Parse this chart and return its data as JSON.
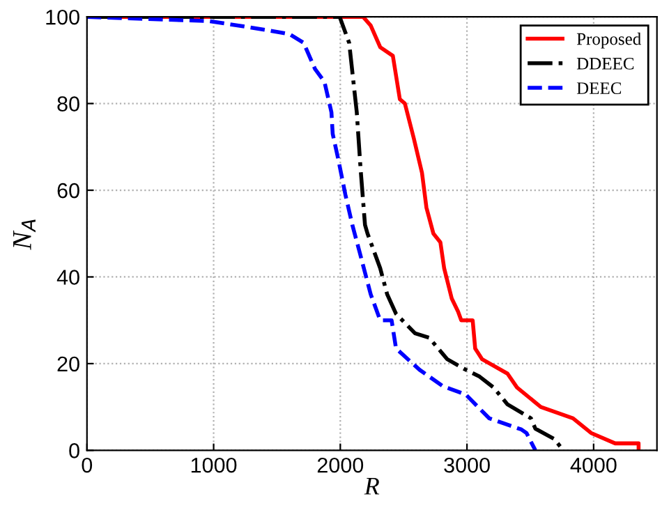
{
  "chart_data": {
    "type": "line",
    "xlabel": "R",
    "ylabel": "N$_{A}$",
    "xlim": [
      0,
      4500
    ],
    "ylim": [
      0,
      100
    ],
    "xticks": [
      0,
      1000,
      2000,
      3000,
      4000
    ],
    "yticks": [
      0,
      20,
      40,
      60,
      80,
      100
    ],
    "grid": true,
    "legend": "top right",
    "series": [
      {
        "name": "Proposed",
        "color": "#ff0000",
        "line_style": "solid",
        "x": [
          0,
          2180,
          2240,
          2315,
          2415,
          2470,
          2510,
          2580,
          2645,
          2680,
          2735,
          2790,
          2820,
          2880,
          2930,
          2955,
          3045,
          3065,
          3120,
          3320,
          3395,
          3583,
          3837,
          3980,
          4170,
          4355,
          4355
        ],
        "values": [
          100,
          100,
          98,
          93,
          91,
          81,
          80,
          72,
          64,
          56,
          50,
          48,
          42,
          35,
          32,
          30,
          30,
          23.5,
          21,
          17.7,
          14.5,
          10,
          7.4,
          4,
          1.6,
          1.6,
          0
        ]
      },
      {
        "name": "DDEEC",
        "color": "#000000",
        "line_style": "dashdot",
        "x": [
          0,
          1995,
          2070,
          2130,
          2160,
          2195,
          2215,
          2315,
          2370,
          2440,
          2590,
          2700,
          2845,
          2990,
          3100,
          3210,
          3320,
          3505,
          3540,
          3690,
          3760
        ],
        "values": [
          100,
          100,
          94,
          78,
          65,
          52,
          50,
          42,
          36,
          31.5,
          27,
          26,
          21,
          18.6,
          17,
          14.5,
          10.6,
          7.4,
          5,
          2.6,
          0
        ]
      },
      {
        "name": "DEEC",
        "color": "#0000ff",
        "line_style": "dashed",
        "x": [
          0,
          970,
          1410,
          1600,
          1710,
          1800,
          1875,
          1930,
          1940,
          1985,
          2040,
          2095,
          2150,
          2240,
          2315,
          2405,
          2440,
          2625,
          2810,
          2990,
          3175,
          3430,
          3470,
          3540
        ],
        "values": [
          100,
          99,
          97,
          96,
          94,
          88,
          85,
          78,
          73,
          67,
          59,
          52,
          46,
          36,
          30,
          30,
          23.5,
          18.6,
          14.8,
          12.9,
          7.4,
          4.8,
          4,
          0
        ]
      }
    ]
  }
}
